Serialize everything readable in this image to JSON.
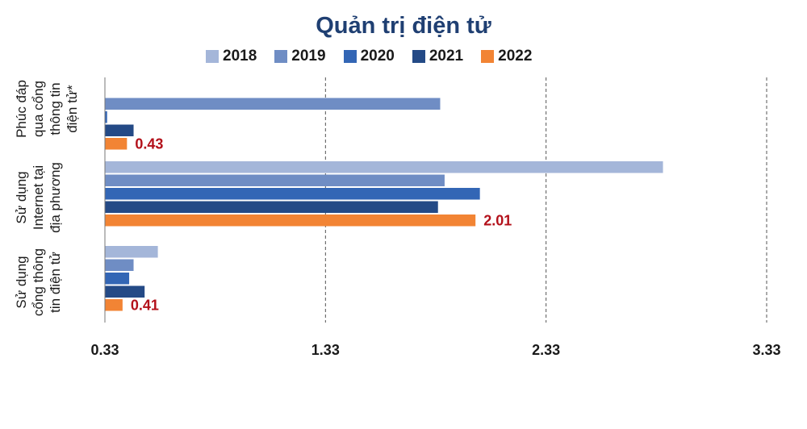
{
  "chart_data": {
    "type": "bar",
    "orientation": "horizontal",
    "title": "Quản trị điện tử",
    "categories": [
      "Phúc đáp qua cổng thông tin điện tử*",
      "Sử dụng Internet tại địa phương",
      "Sử dụng cổng thông tin điện tử"
    ],
    "category_label_lines": [
      [
        "Phúc đáp",
        "qua cổng",
        "thông tin",
        "điện tử*"
      ],
      [
        "Sử dụng",
        "Internet tại",
        "địa phương"
      ],
      [
        "Sử dụng",
        "cổng thông",
        "tin điện tử"
      ]
    ],
    "series": [
      {
        "name": "2018",
        "color": "#a4b6d9",
        "values": [
          null,
          2.86,
          0.57
        ]
      },
      {
        "name": "2019",
        "color": "#6f8dc4",
        "values": [
          1.85,
          1.87,
          0.46
        ]
      },
      {
        "name": "2020",
        "color": "#3366b5",
        "values": [
          0.34,
          2.03,
          0.44
        ]
      },
      {
        "name": "2021",
        "color": "#244a86",
        "values": [
          0.46,
          1.84,
          0.51
        ]
      },
      {
        "name": "2022",
        "color": "#f28434",
        "values": [
          0.43,
          2.01,
          0.41
        ]
      }
    ],
    "data_labels": [
      {
        "series": "2022",
        "category_index": 0,
        "text": "0.43"
      },
      {
        "series": "2022",
        "category_index": 1,
        "text": "2.01"
      },
      {
        "series": "2022",
        "category_index": 2,
        "text": "0.41"
      }
    ],
    "x_ticks": [
      0.33,
      1.33,
      2.33,
      3.33
    ],
    "x_tick_labels": [
      "0.33",
      "1.33",
      "2.33",
      "3.33"
    ],
    "xlim": [
      0.33,
      3.33
    ],
    "grid": "vertical dashed",
    "legend_position": "top"
  }
}
